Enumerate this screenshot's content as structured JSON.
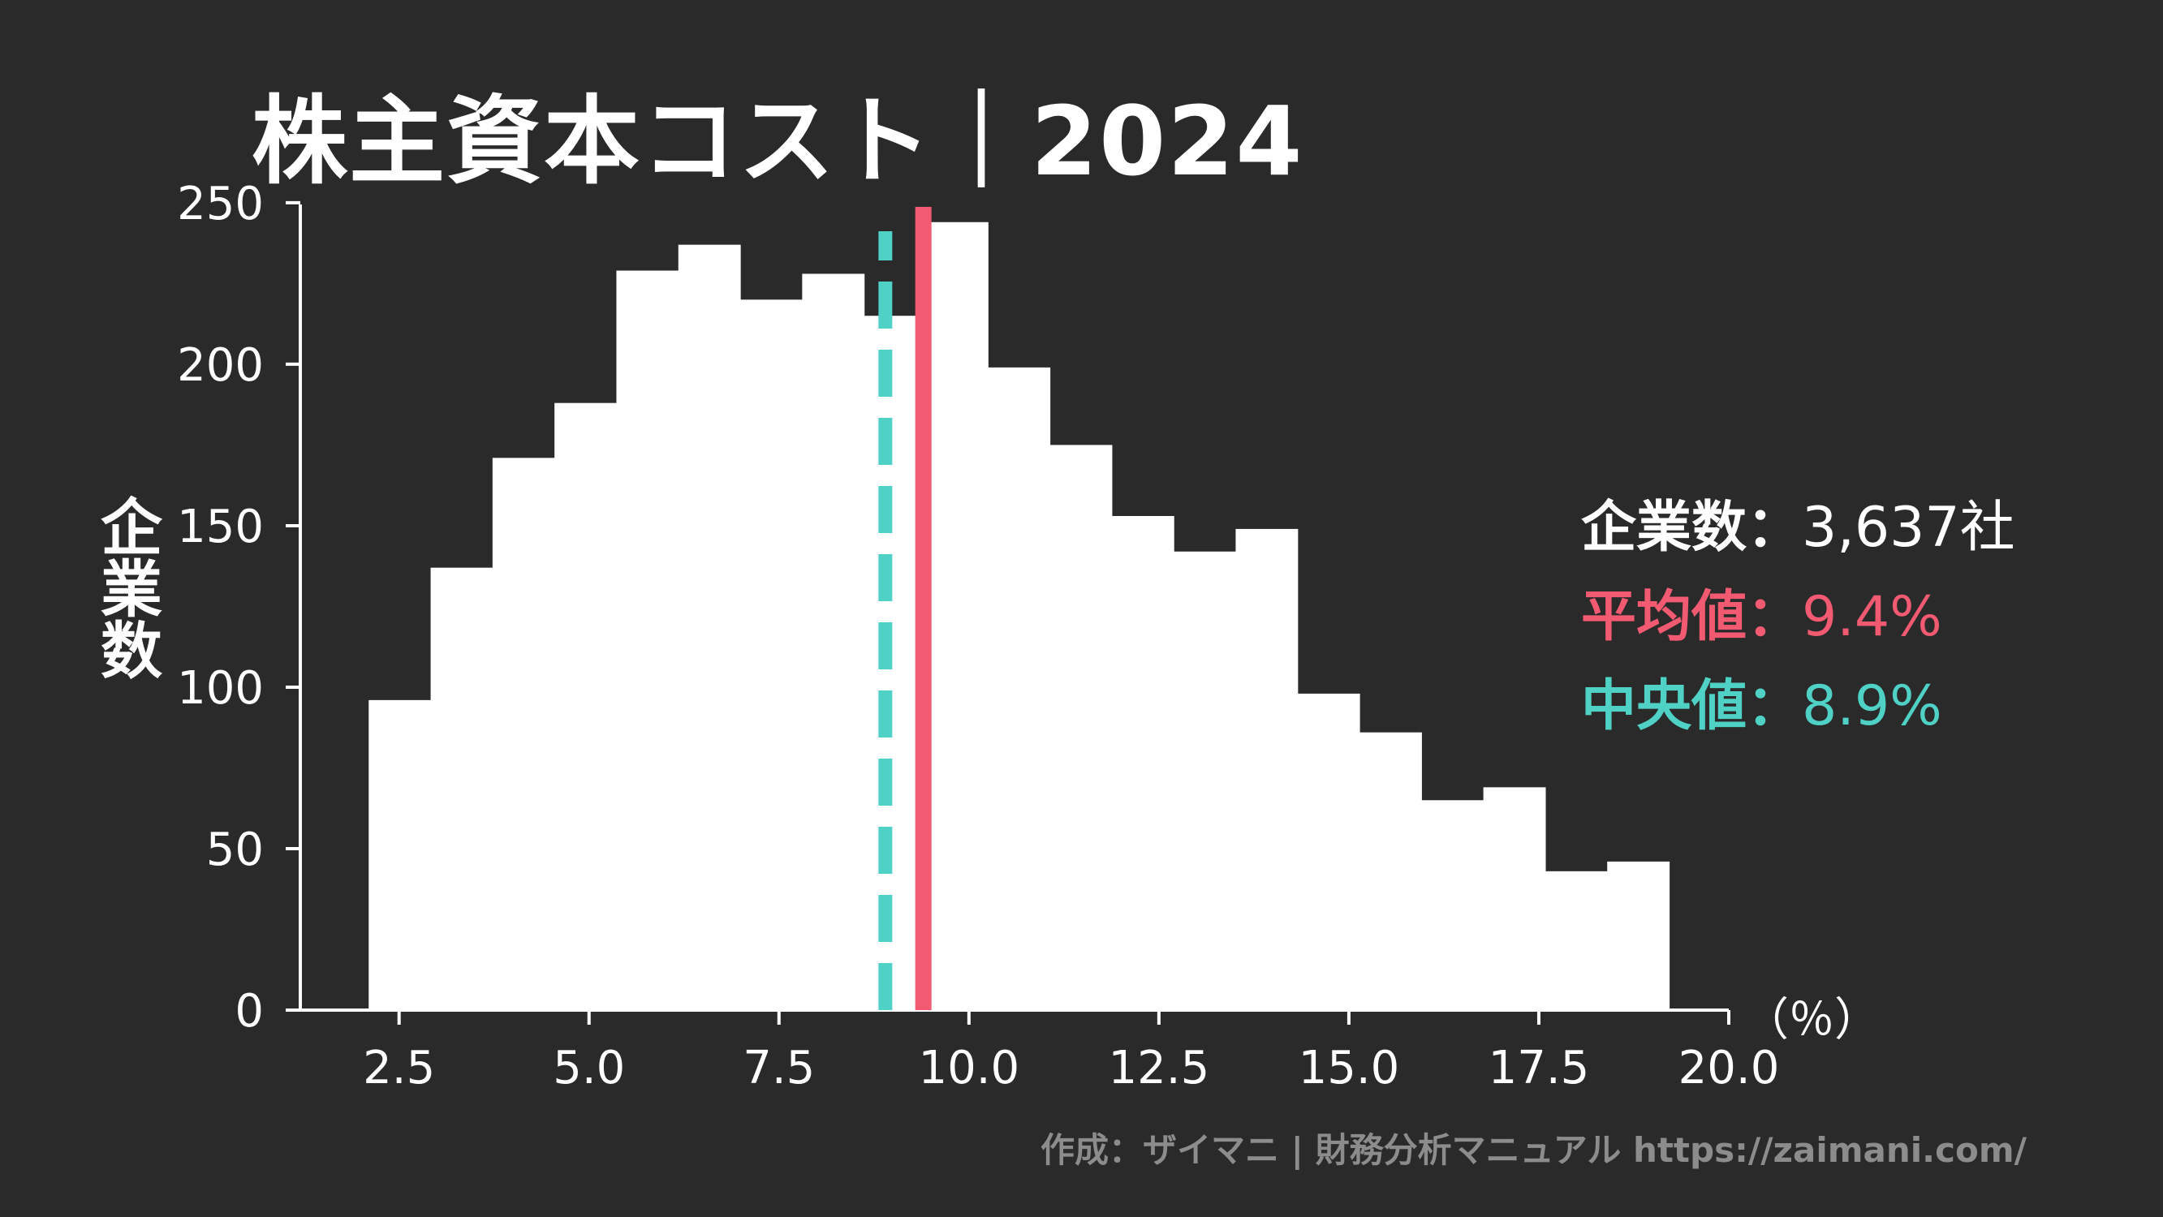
{
  "title": "株主資本コスト｜2024",
  "stats": {
    "count_label": "企業数：",
    "count_value": "3,637社",
    "mean_label": "平均値：",
    "mean_value": "9.4%",
    "median_label": "中央値：",
    "median_value": "8.9%"
  },
  "credit": "作成：ザイマニ | 財務分析マニュアル https://zaimani.com/",
  "colors": {
    "background": "#2a2a2a",
    "bars": "#ffffff",
    "mean_line": "#f25a72",
    "median_line": "#4fd1c5",
    "credit": "#8c8c8c"
  },
  "chart_data": {
    "type": "bar",
    "title": "株主資本コスト｜2024",
    "xlabel": "（％）",
    "ylabel": "企業数",
    "xlim": [
      1.2,
      20.0
    ],
    "ylim": [
      0,
      255
    ],
    "xticks": [
      2.5,
      5.0,
      7.5,
      10.0,
      12.5,
      15.0,
      17.5,
      20.0
    ],
    "xtick_labels": [
      "2.5",
      "5.0",
      "7.5",
      "10.0",
      "12.5",
      "15.0",
      "17.5",
      "20.0"
    ],
    "yticks": [
      0,
      50,
      100,
      150,
      200,
      250
    ],
    "ytick_labels": [
      "0",
      "50",
      "100",
      "150",
      "200",
      "250"
    ],
    "bin_edges": [
      2.1,
      2.915,
      3.73,
      4.545,
      5.36,
      6.175,
      6.99,
      7.805,
      8.62,
      9.435,
      10.25,
      11.065,
      11.88,
      12.695,
      13.51,
      14.325,
      15.14,
      15.955,
      16.77,
      17.585,
      18.4,
      19.215
    ],
    "counts": [
      96,
      137,
      171,
      188,
      229,
      237,
      220,
      228,
      215,
      244,
      199,
      175,
      153,
      142,
      149,
      98,
      86,
      65,
      69,
      43,
      46
    ],
    "mean": 9.4,
    "median": 8.9,
    "grid": false,
    "legend": "none"
  }
}
